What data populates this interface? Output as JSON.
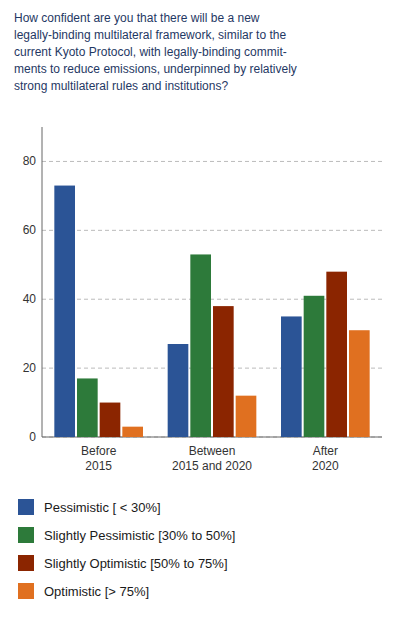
{
  "chart_data": {
    "type": "bar",
    "title": "How confident are you that there will be a new\nlegally-binding multilateral framework, similar to the\ncurrent Kyoto Protocol, with legally-binding commit-\nments to reduce emissions, underpinned by relatively\nstrong multilateral rules and institutions?",
    "categories": [
      "Before\n2015",
      "Between\n2015 and 2020",
      "After\n2020"
    ],
    "series": [
      {
        "name": "Pessimistic [ < 30%]",
        "color": "#2b5496",
        "values": [
          73,
          27,
          35
        ]
      },
      {
        "name": "Slightly Pessimistic [30% to 50%]",
        "color": "#2d7a3a",
        "values": [
          17,
          53,
          41
        ]
      },
      {
        "name": "Slightly Optimistic [50% to 75%]",
        "color": "#8b2500",
        "values": [
          10,
          38,
          48
        ]
      },
      {
        "name": "Optimistic [> 75%]",
        "color": "#e07020",
        "values": [
          3,
          12,
          31
        ]
      }
    ],
    "ylim": [
      0,
      90
    ],
    "yticks": [
      0,
      20,
      40,
      60,
      80
    ],
    "grid": true,
    "legend": "bottom"
  }
}
